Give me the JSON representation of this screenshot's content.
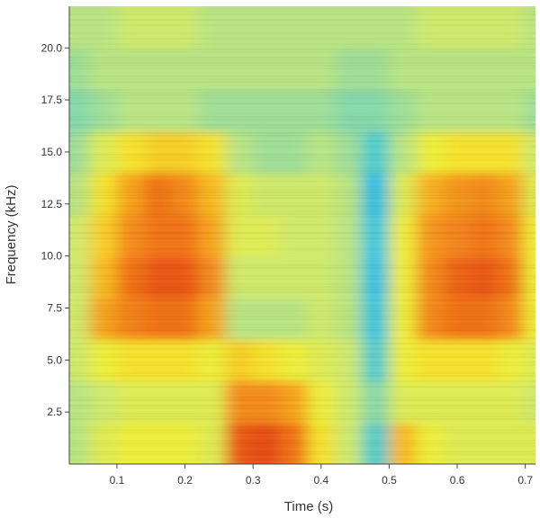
{
  "chart_data": {
    "type": "heatmap",
    "title": "",
    "xlabel": "Time (s)",
    "ylabel": "Frequency (kHz)",
    "xlim": [
      0.03,
      0.715
    ],
    "ylim": [
      0,
      22
    ],
    "x_ticks": [
      {
        "value": 0.1,
        "label": "0.1"
      },
      {
        "value": 0.2,
        "label": "0.2"
      },
      {
        "value": 0.3,
        "label": "0.3"
      },
      {
        "value": 0.4,
        "label": "0.4"
      },
      {
        "value": 0.5,
        "label": "0.5"
      },
      {
        "value": 0.6,
        "label": "0.6"
      },
      {
        "value": 0.7,
        "label": "0.7"
      }
    ],
    "y_ticks": [
      {
        "value": 2.5,
        "label": "2.5"
      },
      {
        "value": 5.0,
        "label": "5.0"
      },
      {
        "value": 7.5,
        "label": "7.5"
      },
      {
        "value": 10.0,
        "label": "10.0"
      },
      {
        "value": 12.5,
        "label": "12.5"
      },
      {
        "value": 15.0,
        "label": "15.0"
      },
      {
        "value": 17.5,
        "label": "17.5"
      },
      {
        "value": 20.0,
        "label": "20.0"
      }
    ],
    "colormap": [
      "#00a8f0",
      "#29c4e0",
      "#7fd6b0",
      "#c8e878",
      "#f4ee30",
      "#f8b420",
      "#f07018",
      "#d82010"
    ],
    "intensity_scale": [
      0,
      1
    ],
    "time_bins": [
      0.04,
      0.08,
      0.12,
      0.16,
      0.2,
      0.24,
      0.28,
      0.32,
      0.36,
      0.4,
      0.44,
      0.48,
      0.52,
      0.56,
      0.6,
      0.64,
      0.68,
      0.715
    ],
    "freq_bins": [
      1,
      3,
      5,
      7,
      9,
      11,
      13,
      15,
      17,
      19,
      21
    ],
    "intensity": [
      [
        0.4,
        0.5,
        0.55,
        0.55,
        0.55,
        0.5,
        0.9,
        0.92,
        0.85,
        0.6,
        0.45,
        0.2,
        0.7,
        0.55,
        0.5,
        0.5,
        0.5,
        0.5
      ],
      [
        0.4,
        0.45,
        0.5,
        0.5,
        0.5,
        0.5,
        0.8,
        0.8,
        0.75,
        0.55,
        0.45,
        0.3,
        0.5,
        0.5,
        0.5,
        0.5,
        0.5,
        0.45
      ],
      [
        0.45,
        0.55,
        0.6,
        0.6,
        0.6,
        0.55,
        0.65,
        0.6,
        0.55,
        0.5,
        0.45,
        0.2,
        0.55,
        0.6,
        0.6,
        0.6,
        0.55,
        0.5
      ],
      [
        0.45,
        0.75,
        0.82,
        0.85,
        0.85,
        0.75,
        0.4,
        0.4,
        0.4,
        0.45,
        0.4,
        0.15,
        0.55,
        0.8,
        0.85,
        0.85,
        0.8,
        0.55
      ],
      [
        0.45,
        0.7,
        0.85,
        0.9,
        0.9,
        0.8,
        0.45,
        0.45,
        0.45,
        0.45,
        0.4,
        0.12,
        0.55,
        0.8,
        0.88,
        0.9,
        0.85,
        0.55
      ],
      [
        0.45,
        0.65,
        0.8,
        0.85,
        0.85,
        0.75,
        0.5,
        0.5,
        0.45,
        0.45,
        0.4,
        0.15,
        0.55,
        0.78,
        0.82,
        0.85,
        0.8,
        0.55
      ],
      [
        0.4,
        0.6,
        0.75,
        0.85,
        0.8,
        0.7,
        0.5,
        0.45,
        0.45,
        0.45,
        0.4,
        0.1,
        0.5,
        0.72,
        0.78,
        0.8,
        0.75,
        0.5
      ],
      [
        0.35,
        0.5,
        0.6,
        0.65,
        0.65,
        0.6,
        0.4,
        0.35,
        0.35,
        0.4,
        0.35,
        0.2,
        0.4,
        0.55,
        0.6,
        0.6,
        0.6,
        0.45
      ],
      [
        0.3,
        0.35,
        0.4,
        0.4,
        0.4,
        0.35,
        0.35,
        0.35,
        0.35,
        0.35,
        0.3,
        0.3,
        0.35,
        0.4,
        0.4,
        0.4,
        0.4,
        0.35
      ],
      [
        0.35,
        0.4,
        0.4,
        0.4,
        0.4,
        0.4,
        0.4,
        0.4,
        0.4,
        0.4,
        0.35,
        0.35,
        0.4,
        0.4,
        0.4,
        0.4,
        0.4,
        0.4
      ],
      [
        0.4,
        0.4,
        0.45,
        0.45,
        0.45,
        0.4,
        0.4,
        0.4,
        0.4,
        0.4,
        0.4,
        0.4,
        0.4,
        0.45,
        0.45,
        0.45,
        0.45,
        0.4
      ]
    ]
  }
}
